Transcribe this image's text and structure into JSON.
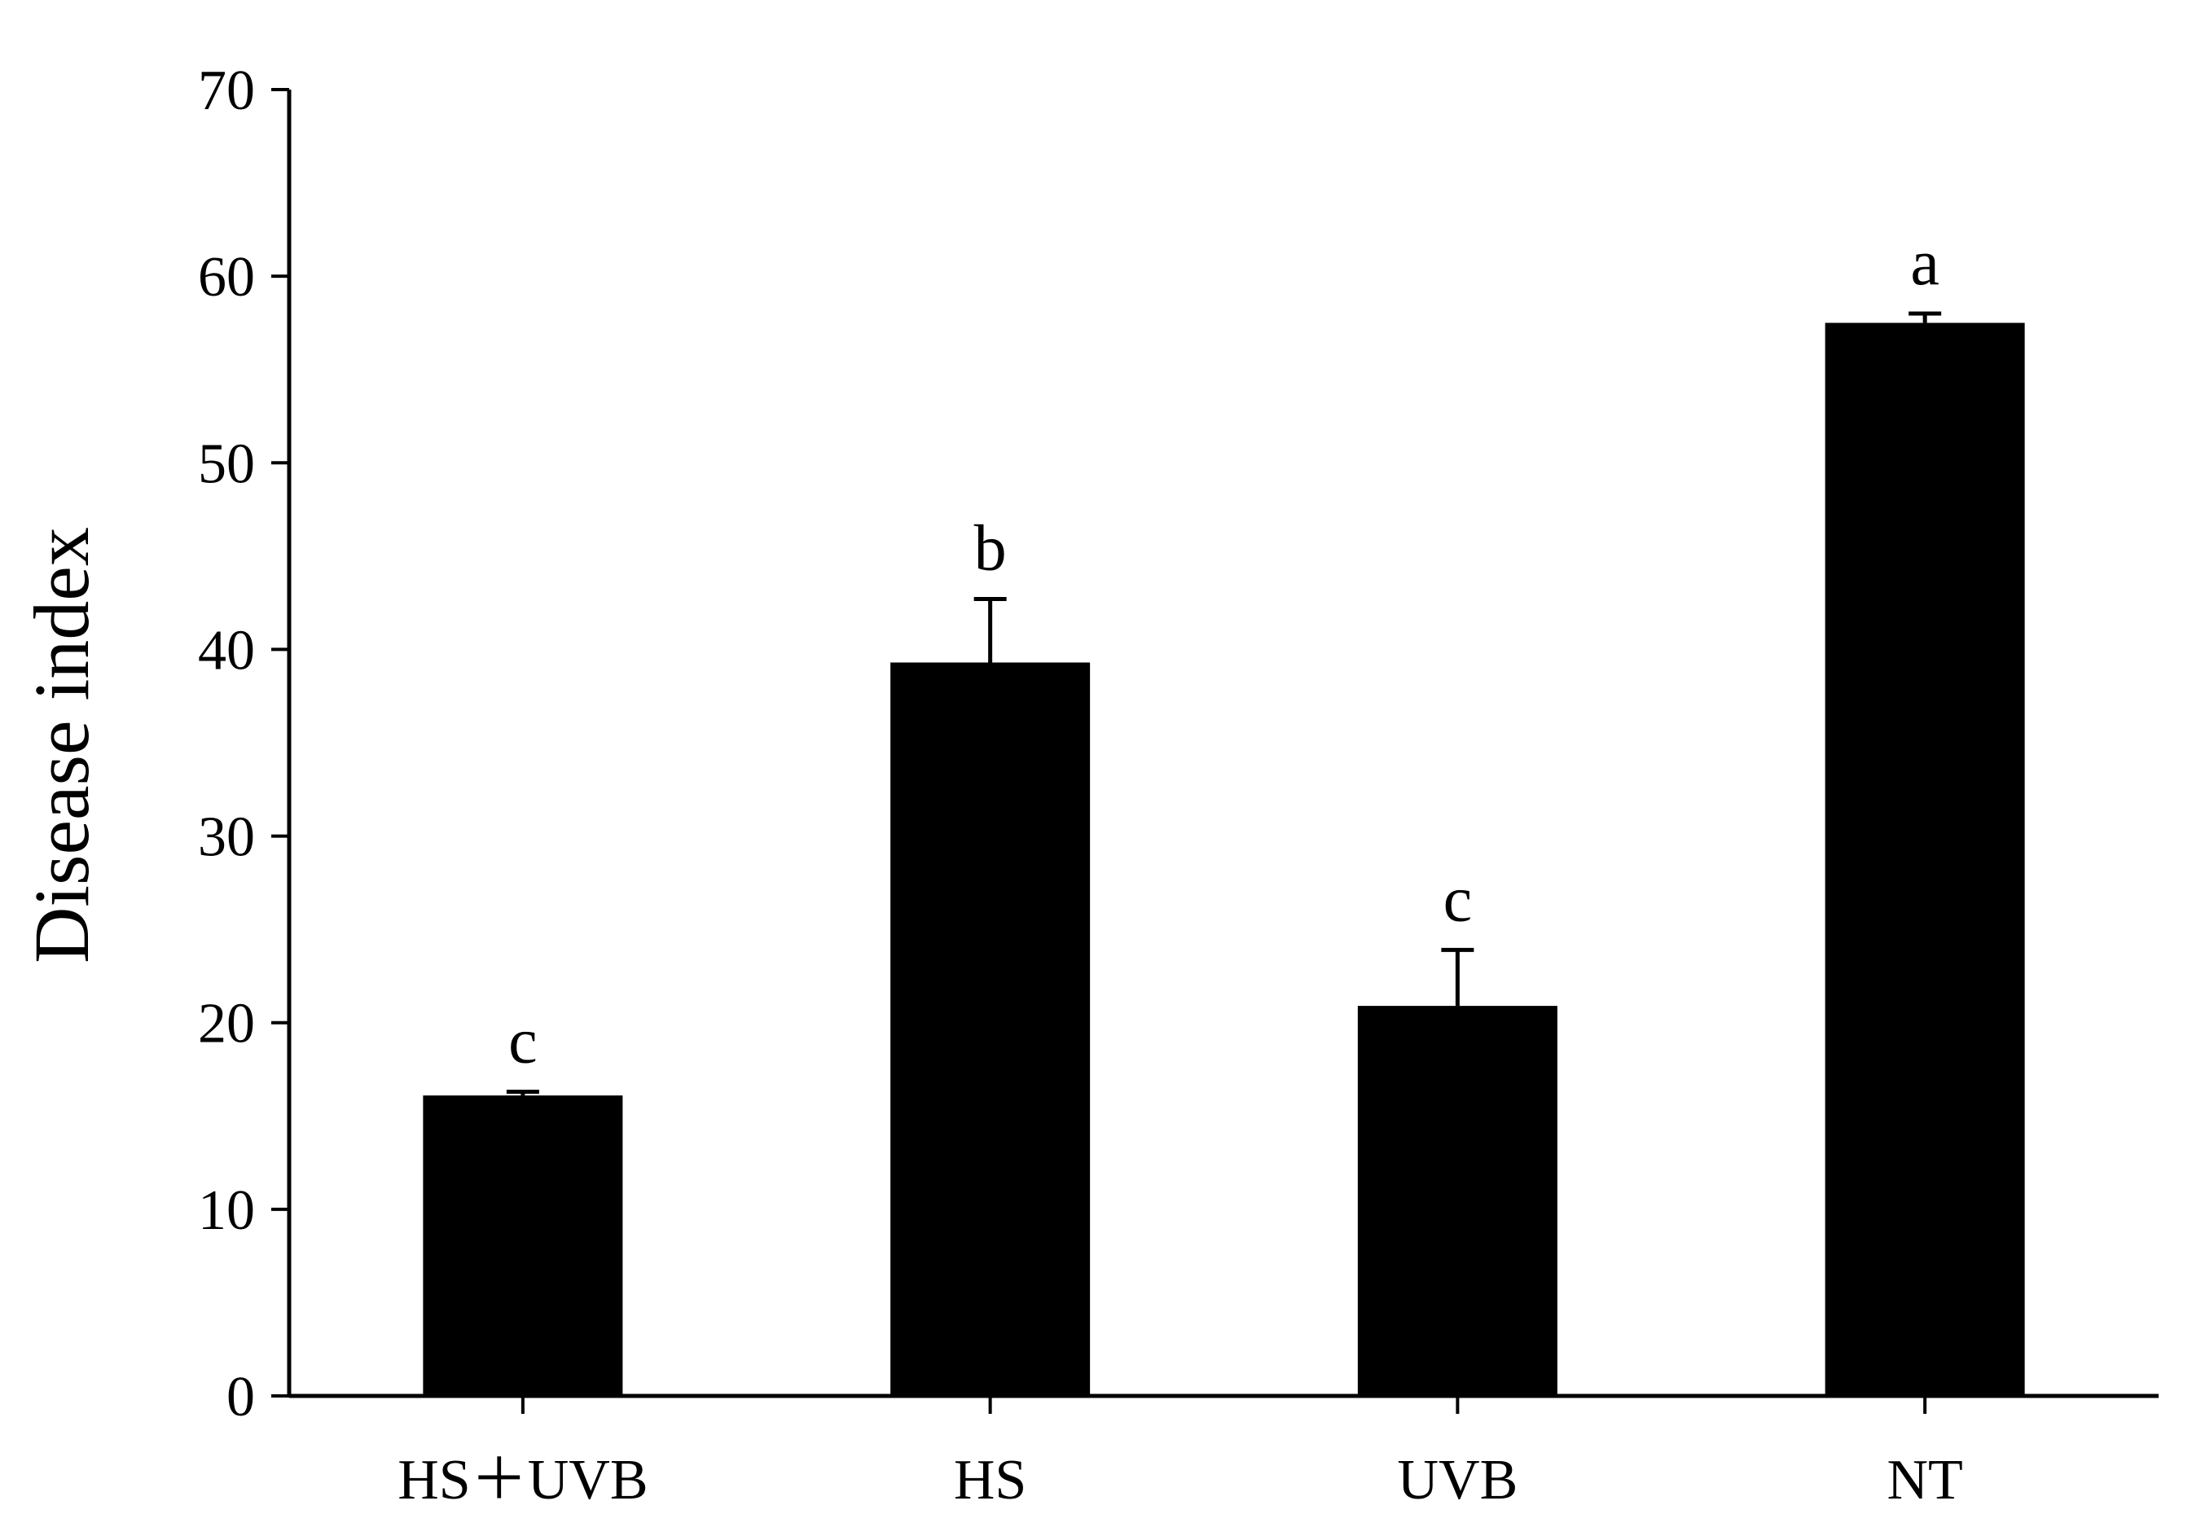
{
  "chart_data": {
    "type": "bar",
    "title": "",
    "xlabel": "",
    "ylabel": "Disease index",
    "categories": [
      "HS＋UVB",
      "HS",
      "UVB",
      "NT"
    ],
    "values": [
      16.1,
      39.3,
      20.9,
      57.5
    ],
    "error": [
      0.2,
      3.4,
      3.0,
      0.5
    ],
    "significance": [
      "c",
      "b",
      "c",
      "a"
    ],
    "ylim": [
      0,
      70
    ],
    "yticks": [
      0,
      10,
      20,
      30,
      40,
      50,
      60,
      70
    ],
    "grid": false,
    "legend": "none",
    "bar_color": "#000000"
  }
}
